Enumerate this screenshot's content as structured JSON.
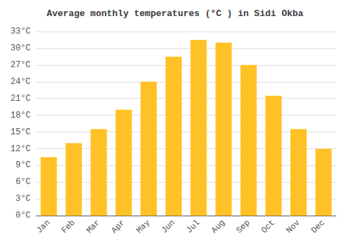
{
  "chart_data": {
    "type": "bar",
    "title": "Average monthly temperatures (°C ) in Sidi Okba",
    "categories": [
      "Jan",
      "Feb",
      "Mar",
      "Apr",
      "May",
      "Jun",
      "Jul",
      "Aug",
      "Sep",
      "Oct",
      "Nov",
      "Dec"
    ],
    "values": [
      10.5,
      13.0,
      15.5,
      19.0,
      24.0,
      28.5,
      31.5,
      31.0,
      27.0,
      21.5,
      15.5,
      12.0
    ],
    "color": "#FFC125",
    "ylim": [
      0,
      33
    ],
    "yticks": [
      {
        "value": 0,
        "label": "0°C"
      },
      {
        "value": 3,
        "label": "3°C"
      },
      {
        "value": 6,
        "label": "6°C"
      },
      {
        "value": 9,
        "label": "9°C"
      },
      {
        "value": 12,
        "label": "12°C"
      },
      {
        "value": 15,
        "label": "15°C"
      },
      {
        "value": 18,
        "label": "18°C"
      },
      {
        "value": 21,
        "label": "21°C"
      },
      {
        "value": 24,
        "label": "24°C"
      },
      {
        "value": 27,
        "label": "27°C"
      },
      {
        "value": 30,
        "label": "30°C"
      },
      {
        "value": 33,
        "label": "33°C"
      }
    ],
    "grid": true
  }
}
